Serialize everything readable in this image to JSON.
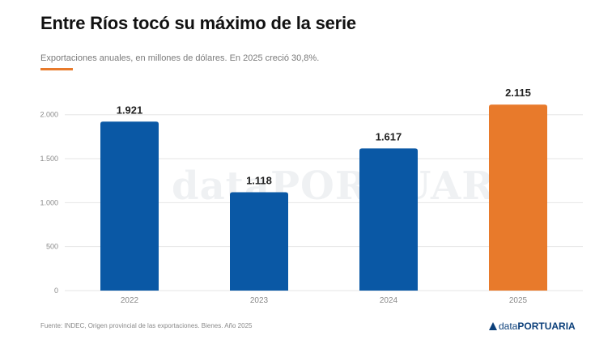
{
  "header": {
    "title": "Entre Ríos tocó su máximo de la serie",
    "subtitle": "Exportaciones anuales, en millones de dólares. En 2025 creció 30,8%."
  },
  "watermark": {
    "part1": "data",
    "part2": "PORTUARIA"
  },
  "footer": {
    "source": "Fuente: INDEC, Origen provincial de las exportaciones. Bienes. Año 2025",
    "logo_part1": "data",
    "logo_part2": "PORTUARIA"
  },
  "colors": {
    "bar": "#0a58a5",
    "highlight": "#e87a2b",
    "accent": "#e87a2b"
  },
  "chart_data": {
    "type": "bar",
    "title": "Entre Ríos tocó su máximo de la serie",
    "xlabel": "",
    "ylabel": "",
    "categories": [
      "2022",
      "2023",
      "2024",
      "2025"
    ],
    "values": [
      1921,
      1118,
      1617,
      2115
    ],
    "value_labels": [
      "1.921",
      "1.118",
      "1.617",
      "2.115"
    ],
    "highlight_index": 3,
    "ylim": [
      0,
      2200
    ],
    "yticks": [
      0,
      500,
      1000,
      1500,
      2000
    ],
    "ytick_labels": [
      "0",
      "500",
      "1.000",
      "1.500",
      "2.000"
    ],
    "grid": true,
    "legend": "none"
  }
}
